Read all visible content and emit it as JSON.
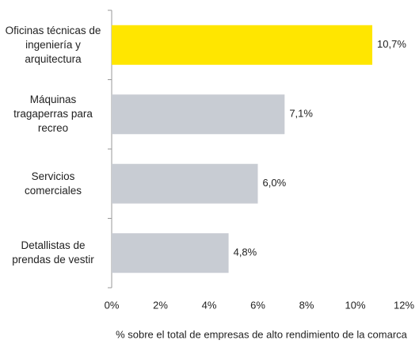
{
  "chart_data": {
    "type": "bar",
    "orientation": "horizontal",
    "categories": [
      "Oficinas técnicas de ingeniería y arquitectura",
      "Máquinas tragaperras para recreo",
      "Servicios comerciales",
      "Detallistas de prendas de vestir"
    ],
    "values": [
      10.7,
      7.1,
      6.0,
      4.8
    ],
    "value_labels": [
      "10,7%",
      "7,1%",
      "6,0%",
      "4,8%"
    ],
    "colors": [
      "#ffe600",
      "#c8ccd3",
      "#c8ccd3",
      "#c8ccd3"
    ],
    "xlabel": "% sobre el total de empresas de alto rendimiento de la comarca",
    "xlim": [
      0,
      12
    ],
    "xticks": [
      {
        "value": 0,
        "label": "0%"
      },
      {
        "value": 2,
        "label": "2%"
      },
      {
        "value": 4,
        "label": "4%"
      },
      {
        "value": 6,
        "label": "6%"
      },
      {
        "value": 8,
        "label": "8%"
      },
      {
        "value": 10,
        "label": "10%"
      },
      {
        "value": 12,
        "label": "12%"
      }
    ],
    "grid": false
  }
}
